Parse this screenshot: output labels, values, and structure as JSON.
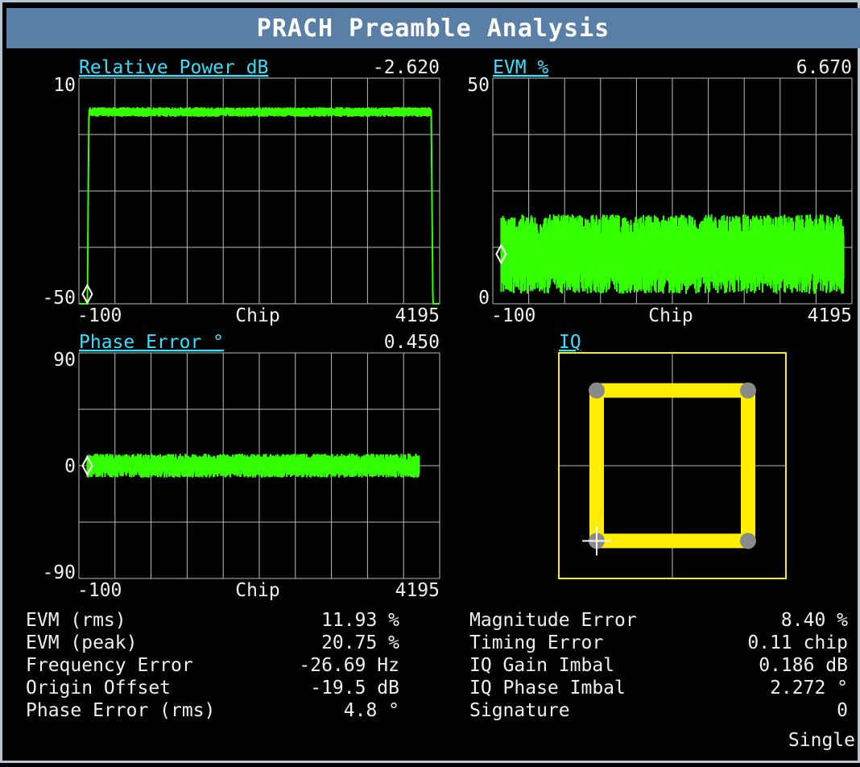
{
  "title": "PRACH Preamble Analysis",
  "status": "Single",
  "colors": {
    "trace": "#33ff00",
    "iq": "#ffee00",
    "label": "#33e0ff",
    "grid": "#bdbdbd",
    "text": "#f0f0f0"
  },
  "chart_data": [
    {
      "type": "line",
      "title": "Relative Power dB",
      "readout": "-2.620",
      "xlabel": "Chip",
      "x_range": [
        -100,
        4195
      ],
      "ylim": [
        -50,
        10
      ],
      "x_tick_labels": [
        "-100",
        "4195"
      ],
      "y_tick_labels": [
        "10",
        "-50"
      ],
      "grid": true,
      "marker_x": 0,
      "shape": "plateau",
      "x": [
        -100,
        0,
        20,
        4095,
        4115,
        4195
      ],
      "values": [
        -50,
        -50,
        1,
        1,
        -50,
        -50
      ],
      "noise": 0.8
    },
    {
      "type": "line",
      "title": "EVM %",
      "readout": "6.670",
      "xlabel": "Chip",
      "x_range": [
        -100,
        4195
      ],
      "ylim": [
        0,
        50
      ],
      "x_tick_labels": [
        "-100",
        "4195"
      ],
      "y_tick_labels": [
        "50",
        "0"
      ],
      "grid": true,
      "marker_x": 0,
      "shape": "noise-band",
      "x": [
        0,
        4095
      ],
      "values": [
        11,
        11
      ],
      "noise": 5.5
    },
    {
      "type": "line",
      "title": "Phase Error °",
      "readout": "0.450",
      "xlabel": "Chip",
      "x_range": [
        -100,
        4195
      ],
      "ylim": [
        -90,
        90
      ],
      "x_tick_labels": [
        "-100",
        "4195"
      ],
      "y_tick_labels": [
        "90",
        "0",
        "-90"
      ],
      "grid": true,
      "marker_x": 0,
      "shape": "noise-band",
      "x": [
        0,
        3950
      ],
      "values": [
        0,
        0
      ],
      "noise": 6
    },
    {
      "type": "scatter",
      "title": "IQ",
      "points": [
        {
          "i": -0.7,
          "q": 0.7
        },
        {
          "i": 0.7,
          "q": 0.7
        },
        {
          "i": 0.7,
          "q": -0.7
        },
        {
          "i": -0.7,
          "q": -0.7
        }
      ],
      "marker": {
        "i": -0.7,
        "q": -0.7
      },
      "ylim": [
        -1.05,
        1.05
      ]
    }
  ],
  "stats_left": [
    {
      "label": "EVM (rms)",
      "value": "11.93 %"
    },
    {
      "label": "EVM (peak)",
      "value": "20.75 %"
    },
    {
      "label": "Frequency Error",
      "value": "-26.69 Hz"
    },
    {
      "label": "Origin Offset",
      "value": "-19.5 dB"
    },
    {
      "label": "Phase Error (rms)",
      "value": "4.8 °"
    }
  ],
  "stats_right": [
    {
      "label": "Magnitude Error",
      "value": "8.40 %"
    },
    {
      "label": "Timing Error",
      "value": "0.11 chip"
    },
    {
      "label": "IQ Gain Imbal",
      "value": "0.186 dB"
    },
    {
      "label": "IQ Phase Imbal",
      "value": "2.272 °"
    },
    {
      "label": "Signature",
      "value": "0"
    }
  ]
}
